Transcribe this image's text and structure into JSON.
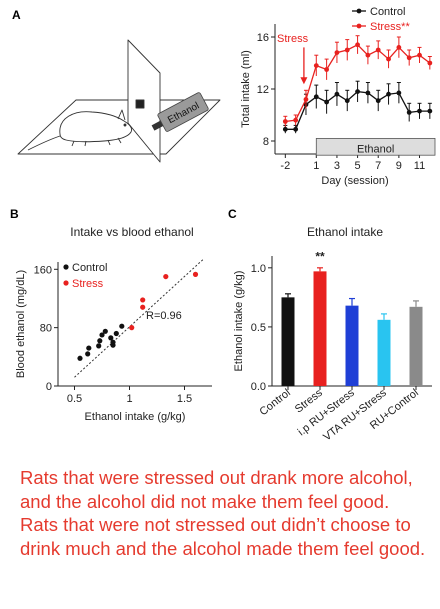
{
  "panel_labels": {
    "a": "A",
    "b": "B",
    "c": "C"
  },
  "illustration": {
    "bottle_label": "Ethanol"
  },
  "caption": "Rats that were stressed out drank more alcohol, and the alcohol did not make them feel good. Rats that were not stressed out didn’t choose to drink much and the alcohol made them feel good.",
  "colors": {
    "control": "#111111",
    "stress": "#e8211f",
    "caption": "#e53a2e"
  },
  "chart_data": [
    {
      "panel": "A",
      "type": "line",
      "xlabel": "Day (session)",
      "ylabel": "Total intake (ml)",
      "xlim": [
        -3,
        12.5
      ],
      "ylim": [
        7,
        17
      ],
      "xticks": [
        -2,
        1,
        3,
        5,
        7,
        9,
        11
      ],
      "yticks": [
        8,
        12,
        16
      ],
      "legend": {
        "position": "top-right",
        "entries": [
          "Control",
          "Stress**"
        ]
      },
      "annotations": {
        "stress_arrow": "Stress",
        "ethanol_bar": "Ethanol"
      },
      "ethanol_range": [
        1,
        12.5
      ],
      "series": [
        {
          "name": "Control",
          "x": [
            -2,
            -1,
            0,
            1,
            2,
            3,
            4,
            5,
            6,
            7,
            8,
            9,
            10,
            11,
            12
          ],
          "values": [
            8.9,
            8.9,
            10.8,
            11.4,
            11.0,
            11.6,
            11.1,
            11.8,
            11.7,
            11.1,
            11.6,
            11.7,
            10.2,
            10.3,
            10.3
          ],
          "errors": [
            0.3,
            0.3,
            0.8,
            0.9,
            0.9,
            0.9,
            0.8,
            0.8,
            0.8,
            0.8,
            0.8,
            0.8,
            0.7,
            0.6,
            0.6
          ]
        },
        {
          "name": "Stress**",
          "x": [
            -2,
            -1,
            0,
            1,
            2,
            3,
            4,
            5,
            6,
            7,
            8,
            9,
            10,
            11,
            12
          ],
          "values": [
            9.5,
            9.6,
            11.2,
            13.8,
            13.5,
            14.8,
            15.0,
            15.4,
            14.6,
            15.0,
            14.3,
            15.2,
            14.4,
            14.6,
            14.0
          ],
          "errors": [
            0.4,
            0.4,
            0.7,
            0.8,
            0.8,
            0.8,
            0.8,
            0.7,
            0.7,
            0.7,
            0.7,
            0.8,
            0.6,
            0.6,
            0.5
          ]
        }
      ]
    },
    {
      "panel": "B",
      "type": "scatter",
      "title": "Intake vs blood ethanol",
      "xlabel": "Ethanol intake (g/kg)",
      "ylabel": "Blood ethanol (mg/dL)",
      "xlim": [
        0.35,
        1.75
      ],
      "ylim": [
        0,
        170
      ],
      "xticks": [
        0.5,
        1.0,
        1.5
      ],
      "yticks": [
        0,
        80,
        160
      ],
      "legend": {
        "position": "top-left",
        "entries": [
          "Control",
          "Stress"
        ]
      },
      "annotation": "R=0.96",
      "series": [
        {
          "name": "Control",
          "x": [
            0.55,
            0.62,
            0.63,
            0.72,
            0.73,
            0.75,
            0.78,
            0.83,
            0.85,
            0.85,
            0.88,
            0.93
          ],
          "y": [
            38,
            44,
            52,
            55,
            62,
            70,
            75,
            66,
            56,
            60,
            72,
            82
          ]
        },
        {
          "name": "Stress",
          "x": [
            1.02,
            1.12,
            1.12,
            1.33,
            1.6
          ],
          "y": [
            80,
            108,
            118,
            150,
            153
          ]
        }
      ]
    },
    {
      "panel": "C",
      "type": "bar",
      "title": "Ethanol intake",
      "ylabel": "Ethanol intake (g/kg)",
      "ylim": [
        0,
        1.1
      ],
      "yticks": [
        0,
        0.5,
        1.0
      ],
      "categories": [
        "Control",
        "Stress",
        "i.p RU+Stress",
        "VTA RU+Stress",
        "RU+Control"
      ],
      "values": [
        0.75,
        0.97,
        0.68,
        0.56,
        0.67
      ],
      "errors": [
        0.03,
        0.03,
        0.06,
        0.05,
        0.05
      ],
      "bar_colors": [
        "#111111",
        "#e8211f",
        "#1f3fd6",
        "#29c4f0",
        "#8a8a8a"
      ],
      "annotation": "**"
    }
  ]
}
